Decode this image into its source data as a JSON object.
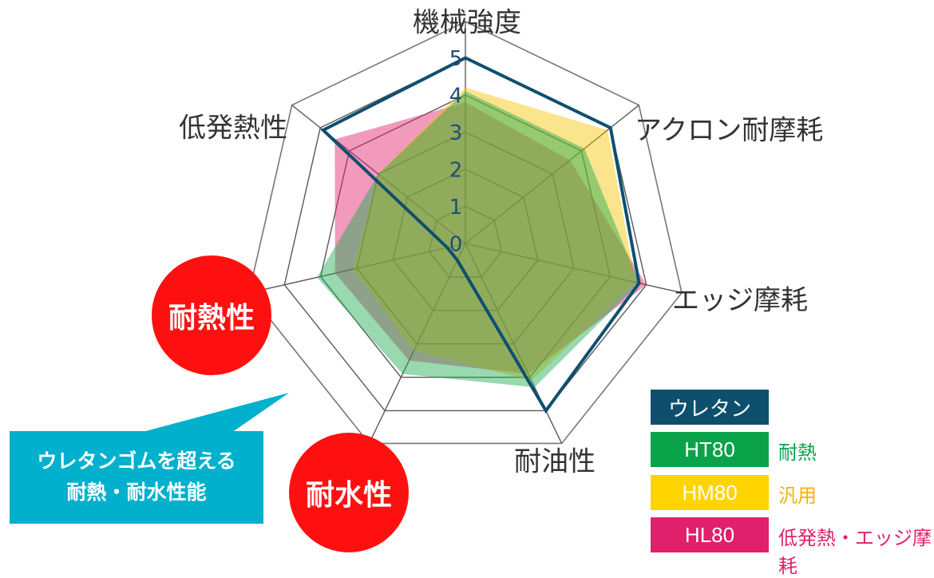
{
  "chart_data": {
    "type": "radar",
    "axes": [
      "機械強度",
      "アクロン耐摩耗",
      "エッジ摩耗",
      "耐油性",
      "耐水性",
      "耐熱性",
      "低発熱性"
    ],
    "range": [
      0,
      5
    ],
    "ticks": [
      "0",
      "1",
      "2",
      "3",
      "4",
      "5"
    ],
    "series": [
      {
        "name": "HL80",
        "color": "#e0206a",
        "fill_opacity": 0.45,
        "values": [
          3.8,
          3.6,
          5.0,
          3.9,
          3.5,
          3.6,
          4.5
        ],
        "outline": false
      },
      {
        "name": "HM80",
        "color": "#f5c400",
        "fill_opacity": 0.45,
        "values": [
          4.2,
          4.9,
          4.7,
          4.1,
          3.2,
          3.1,
          3.0
        ],
        "outline": false
      },
      {
        "name": "HT80",
        "color": "#1aab50",
        "fill_opacity": 0.45,
        "values": [
          4.1,
          4.1,
          4.8,
          4.3,
          3.9,
          4.1,
          3.0
        ],
        "outline": false
      },
      {
        "name": "ウレタン",
        "color": "#0e4f6e",
        "fill_opacity": 0,
        "values": [
          5.0,
          5.0,
          4.8,
          5.0,
          0.5,
          0.5,
          4.9
        ],
        "outline": true
      }
    ]
  },
  "badges": {
    "heat": "耐熱性",
    "water": "耐水性"
  },
  "legend": [
    {
      "label": "ウレタン",
      "desc": ""
    },
    {
      "label": "HT80",
      "desc": "耐熱"
    },
    {
      "label": "HM80",
      "desc": "汎用"
    },
    {
      "label": "HL80",
      "desc": "低発熱・エッジ摩耗"
    }
  ],
  "callout": {
    "line1": "ウレタンゴムを超える",
    "line2": "耐熱・耐水性能"
  }
}
